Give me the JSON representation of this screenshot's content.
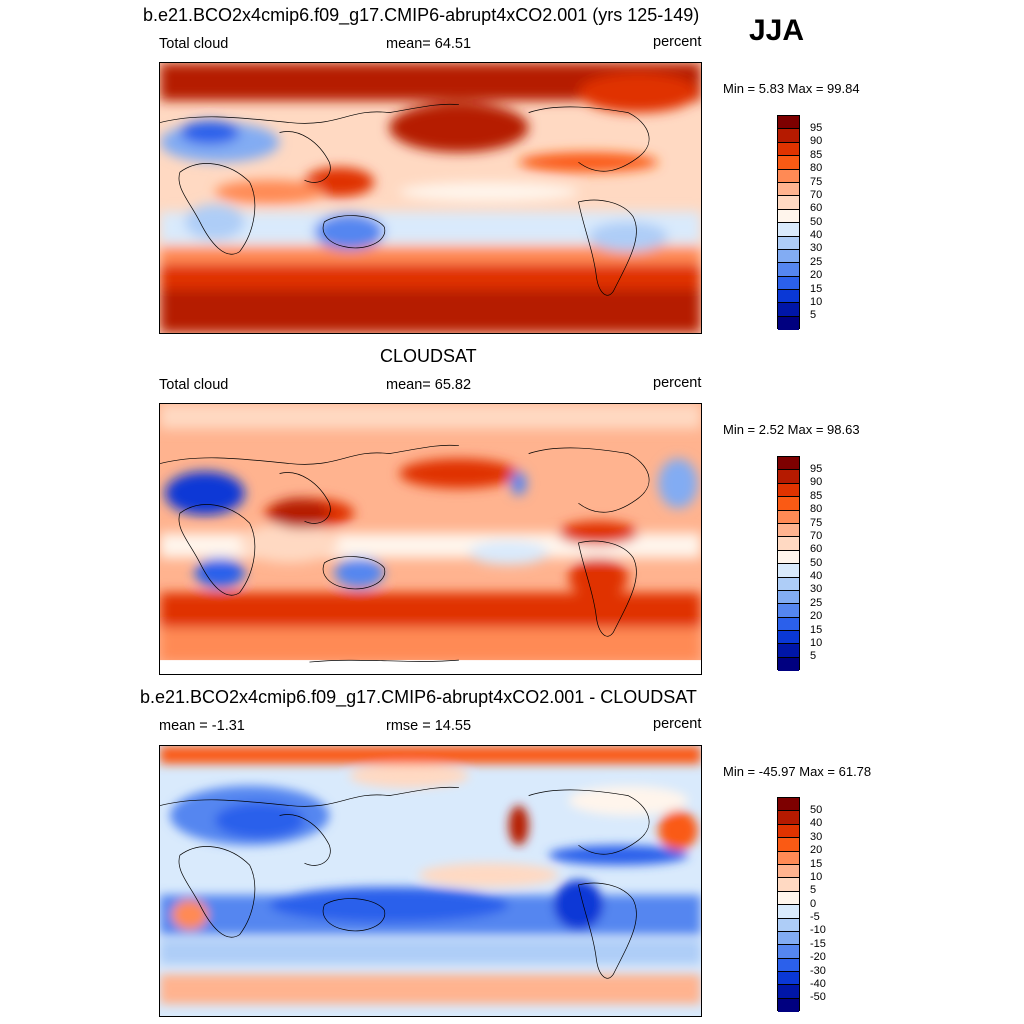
{
  "season": "JJA",
  "panels": [
    {
      "title": "b.e21.BCO2x4cmip6.f09_g17.CMIP6-abrupt4xCO2.001 (yrs 125-149)",
      "left_label": "Total cloud",
      "center_label": "mean=  64.51",
      "right_label": "percent",
      "minmax": "Min =   5.83 Max =  99.84",
      "legend_labels": [
        "95",
        "90",
        "85",
        "80",
        "75",
        "70",
        "60",
        "50",
        "40",
        "30",
        "25",
        "20",
        "15",
        "10",
        "5"
      ],
      "legend_colors": [
        "#7d0000",
        "#b51a00",
        "#e03300",
        "#fa5a14",
        "#ff8a55",
        "#ffb38f",
        "#ffd9c2",
        "#fff5ec",
        "#d9eafc",
        "#aecdf7",
        "#82acf3",
        "#5586f0",
        "#2b60eb",
        "#0a38d6",
        "#0016a8",
        "#000080"
      ]
    },
    {
      "title": "CLOUDSAT",
      "left_label": "Total cloud",
      "center_label": "mean=  65.82",
      "right_label": "percent",
      "minmax": "Min =   2.52 Max =  98.63",
      "legend_labels": [
        "95",
        "90",
        "85",
        "80",
        "75",
        "70",
        "60",
        "50",
        "40",
        "30",
        "25",
        "20",
        "15",
        "10",
        "5"
      ],
      "legend_colors": [
        "#7d0000",
        "#b51a00",
        "#e03300",
        "#fa5a14",
        "#ff8a55",
        "#ffb38f",
        "#ffd9c2",
        "#fff5ec",
        "#d9eafc",
        "#aecdf7",
        "#82acf3",
        "#5586f0",
        "#2b60eb",
        "#0a38d6",
        "#0016a8",
        "#000080"
      ]
    },
    {
      "title": "b.e21.BCO2x4cmip6.f09_g17.CMIP6-abrupt4xCO2.001 - CLOUDSAT",
      "left_label": "mean =  -1.31",
      "center_label": "rmse =  14.55",
      "right_label": "percent",
      "minmax": "Min = -45.97 Max =  61.78",
      "legend_labels": [
        "50",
        "40",
        "30",
        "20",
        "15",
        "10",
        "5",
        "0",
        "-5",
        "-10",
        "-15",
        "-20",
        "-30",
        "-40",
        "-50"
      ],
      "legend_colors": [
        "#7d0000",
        "#b51a00",
        "#e03300",
        "#fa5a14",
        "#ff8a55",
        "#ffb38f",
        "#ffd9c2",
        "#fff5ec",
        "#d9eafc",
        "#aecdf7",
        "#82acf3",
        "#5586f0",
        "#2b60eb",
        "#0a38d6",
        "#0016a8",
        "#000080"
      ]
    }
  ]
}
